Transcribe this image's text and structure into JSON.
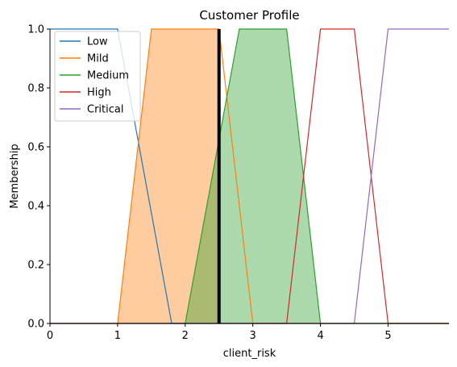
{
  "chart_data": {
    "type": "line",
    "title": "Customer Profile",
    "xlabel": "client_risk",
    "ylabel": "Membership",
    "xlim": [
      0,
      5.9
    ],
    "ylim": [
      0,
      1.0
    ],
    "xticks": [
      0,
      1,
      2,
      3,
      4,
      5
    ],
    "yticks": [
      0.0,
      0.2,
      0.4,
      0.6,
      0.8,
      1.0
    ],
    "xtick_labels": [
      "0",
      "1",
      "2",
      "3",
      "4",
      "5"
    ],
    "ytick_labels": [
      "0.0",
      "0.2",
      "0.4",
      "0.6",
      "0.8",
      "1.0"
    ],
    "grid": false,
    "legend_position": "top-left",
    "series": [
      {
        "name": "Low",
        "color": "#1f77b4",
        "x": [
          0,
          1.0,
          1.8,
          5.9
        ],
        "y": [
          1,
          1,
          0,
          0
        ]
      },
      {
        "name": "Mild",
        "color": "#ff7f0e",
        "x": [
          0,
          1.0,
          1.5,
          2.5,
          3.0,
          5.9
        ],
        "y": [
          0,
          0,
          1,
          1,
          0,
          0
        ]
      },
      {
        "name": "Medium",
        "color": "#2ca02c",
        "x": [
          0,
          2.0,
          2.8,
          3.5,
          4.0,
          5.9
        ],
        "y": [
          0,
          0,
          1,
          1,
          0,
          0
        ]
      },
      {
        "name": "High",
        "color": "#d62728",
        "x": [
          0,
          3.5,
          4.0,
          4.5,
          5.0,
          5.9
        ],
        "y": [
          0,
          0,
          1,
          1,
          0,
          0
        ]
      },
      {
        "name": "Critical",
        "color": "#9467bd",
        "x": [
          0,
          4.5,
          5.0,
          5.9
        ],
        "y": [
          0,
          0,
          1,
          1
        ]
      }
    ],
    "input_marker": {
      "x": 2.5,
      "y": 1.0,
      "color": "#000000"
    },
    "fills": [
      {
        "series": "Mild",
        "color": "#ff7f0e",
        "x": [
          1.0,
          1.5,
          2.5,
          2.5
        ],
        "y": [
          0,
          1,
          1,
          0
        ]
      },
      {
        "series": "Medium",
        "color": "#2ca02c",
        "x": [
          2.0,
          2.8,
          3.5,
          4.0
        ],
        "y": [
          0,
          1,
          1,
          0
        ]
      }
    ]
  }
}
